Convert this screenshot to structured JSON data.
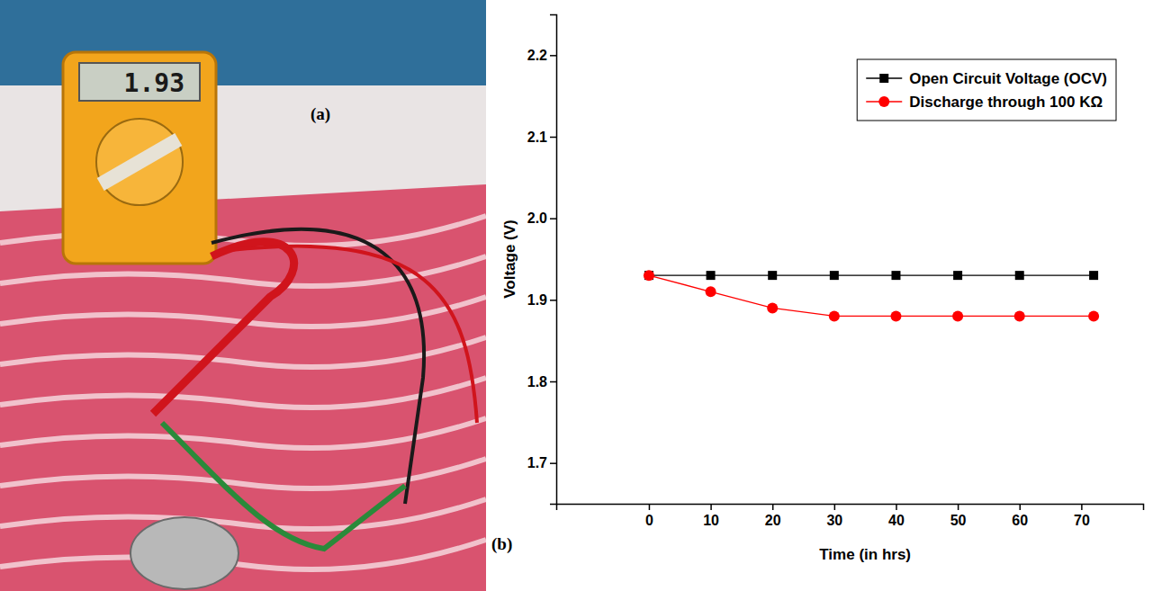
{
  "photo": {
    "label": "(a)",
    "meter_reading": "1.93"
  },
  "chart_data": {
    "type": "line",
    "annotations": [
      "(b)"
    ],
    "x_label": "Time (in hrs)",
    "y_label": "Voltage (V)",
    "x": [
      0,
      10,
      20,
      30,
      40,
      50,
      60,
      72
    ],
    "series": [
      {
        "name": "Open Circuit Voltage (OCV)",
        "color": "#000000",
        "marker": "square",
        "values": [
          1.93,
          1.93,
          1.93,
          1.93,
          1.93,
          1.93,
          1.93,
          1.93
        ]
      },
      {
        "name": "Discharge through 100 KΩ",
        "color": "#ff0000",
        "marker": "circle",
        "values": [
          1.93,
          1.91,
          1.89,
          1.88,
          1.88,
          1.88,
          1.88,
          1.88
        ]
      }
    ],
    "xlim": [
      -15,
      80
    ],
    "xticks": [
      0,
      10,
      20,
      30,
      40,
      50,
      60,
      70
    ],
    "ylim": [
      1.65,
      2.25
    ],
    "yticks": [
      1.7,
      1.8,
      1.9,
      {
        "value": 2,
        "label": "2.0"
      },
      2.1,
      2.2
    ],
    "legend": "upper right",
    "grid": false
  }
}
